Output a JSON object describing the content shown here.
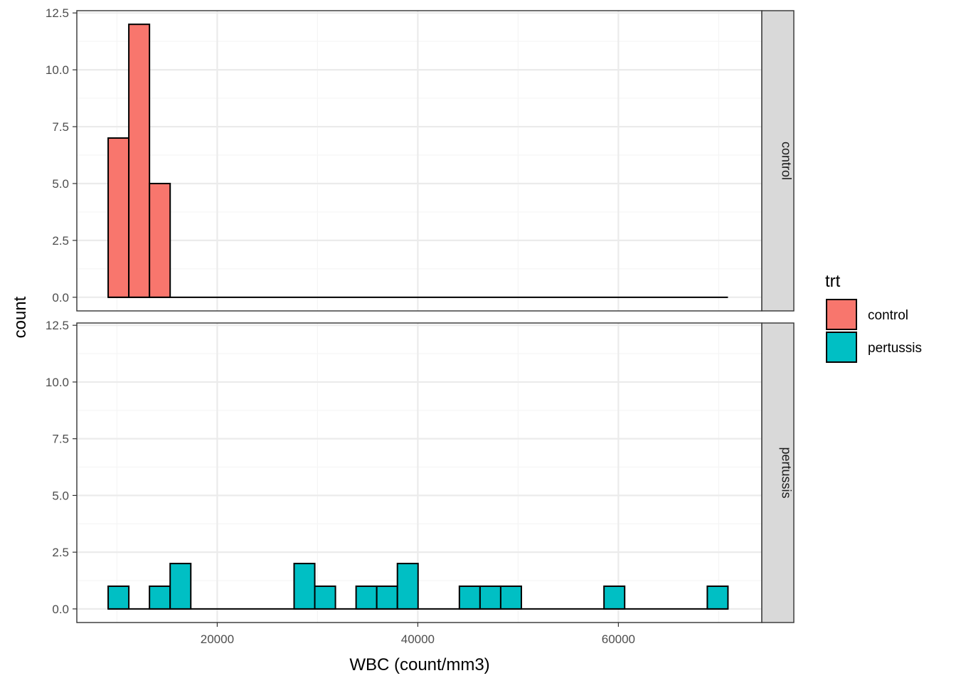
{
  "chart_data": {
    "type": "bar",
    "subtype": "faceted-histogram",
    "xlabel": "WBC (count/mm3)",
    "ylabel": "count",
    "x_ticks": [
      20000,
      40000,
      60000
    ],
    "x_tick_labels": [
      "20000",
      "40000",
      "60000"
    ],
    "xlim": [
      6000,
      74300
    ],
    "y_ticks": [
      0,
      2.5,
      5,
      7.5,
      10,
      12.5
    ],
    "y_tick_labels": [
      "0.0",
      "2.5",
      "5.0",
      "7.5",
      "10.0",
      "12.5"
    ],
    "ylim": [
      -0.6,
      12.6
    ],
    "grid": true,
    "bin_start": 9125,
    "bin_width": 2060,
    "bin_count": 30,
    "legend": {
      "title": "trt",
      "placement": "right",
      "entries": [
        {
          "label": "control",
          "color": "#F8766D"
        },
        {
          "label": "pertussis",
          "color": "#00BFC4"
        }
      ]
    },
    "facets": [
      {
        "name": "control",
        "color": "#F8766D",
        "values": [
          7,
          12,
          5,
          0,
          0,
          0,
          0,
          0,
          0,
          0,
          0,
          0,
          0,
          0,
          0,
          0,
          0,
          0,
          0,
          0,
          0,
          0,
          0,
          0,
          0,
          0,
          0,
          0,
          0,
          0
        ]
      },
      {
        "name": "pertussis",
        "color": "#00BFC4",
        "values": [
          1,
          0,
          1,
          2,
          0,
          0,
          0,
          0,
          0,
          2,
          1,
          0,
          1,
          1,
          2,
          0,
          0,
          1,
          1,
          1,
          0,
          0,
          0,
          0,
          1,
          0,
          0,
          0,
          0,
          1
        ]
      }
    ]
  },
  "colors": {
    "panel_border": "#333333",
    "grid_major": "#ebebeb",
    "grid_minor": "#f5f5f5",
    "strip_fill": "#d9d9d9",
    "bar_outline": "#000000"
  }
}
